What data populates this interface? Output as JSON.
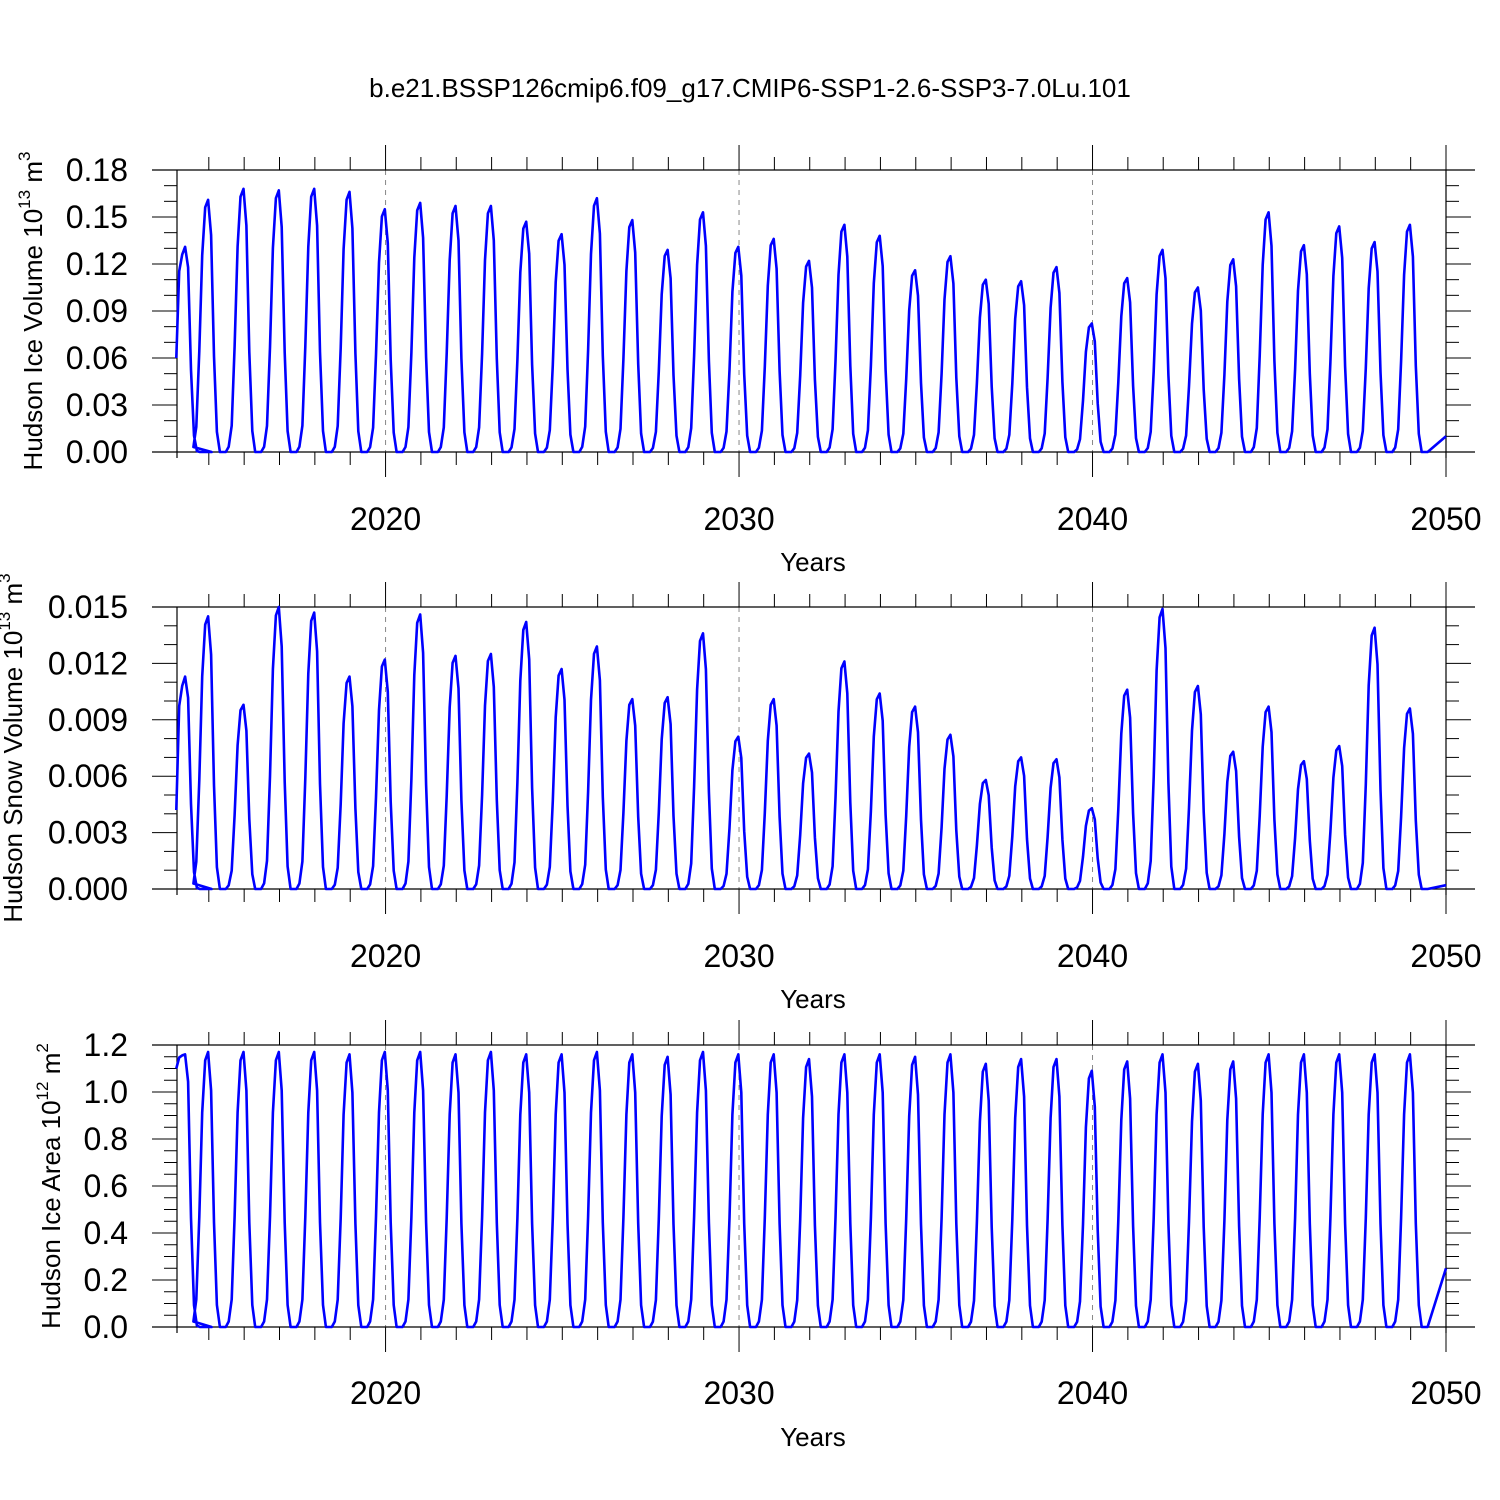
{
  "title": "b.e21.BSSP126cmip6.f09_g17.CMIP6-SSP1-2.6-SSP3-7.0Lu.101",
  "colors": {
    "series": "#0000ff",
    "axes": "#000000",
    "grid": "#888888"
  },
  "chart_data": [
    {
      "type": "line",
      "name": "ice-volume",
      "ylabel": {
        "text": "Hudson Ice Volume 10",
        "exp": "13",
        "unit": " m",
        "unit_exp": "3"
      },
      "xlabel": "Years",
      "xlim": [
        2014.1,
        2050.0
      ],
      "ylim": [
        0,
        0.18
      ],
      "yticks": [
        0.0,
        0.03,
        0.06,
        0.09,
        0.12,
        0.15,
        0.18
      ],
      "ytick_labels": [
        "0.00",
        "0.03",
        "0.06",
        "0.09",
        "0.12",
        "0.15",
        "0.18"
      ],
      "yminor": 0.01,
      "xticks": [
        2020,
        2030,
        2040,
        2050
      ],
      "xtick_labels": [
        "2020",
        "2030",
        "2040",
        "2050"
      ],
      "grid_years": [
        2020,
        2030,
        2040
      ],
      "start_year": 2014.08,
      "start_value": 0.06,
      "end_value": 0.01,
      "base_value": 0.0,
      "annual_peaks": [
        0.131,
        0.161,
        0.168,
        0.167,
        0.168,
        0.166,
        0.155,
        0.159,
        0.157,
        0.157,
        0.147,
        0.139,
        0.162,
        0.148,
        0.129,
        0.153,
        0.131,
        0.136,
        0.122,
        0.145,
        0.138,
        0.116,
        0.125,
        0.11,
        0.109,
        0.118,
        0.082,
        0.111,
        0.129,
        0.105,
        0.123,
        0.153,
        0.132,
        0.144,
        0.134,
        0.145
      ]
    },
    {
      "type": "line",
      "name": "snow-volume",
      "ylabel": {
        "text": "Hudson Snow Volume 10",
        "exp": "13",
        "unit": " m",
        "unit_exp": "3"
      },
      "xlabel": "Years",
      "xlim": [
        2014.1,
        2050.0
      ],
      "ylim": [
        0,
        0.015
      ],
      "yticks": [
        0.0,
        0.003,
        0.006,
        0.009,
        0.012,
        0.015
      ],
      "ytick_labels": [
        "0.000",
        "0.003",
        "0.006",
        "0.009",
        "0.012",
        "0.015"
      ],
      "yminor": 0.001,
      "xticks": [
        2020,
        2030,
        2040,
        2050
      ],
      "xtick_labels": [
        "2020",
        "2030",
        "2040",
        "2050"
      ],
      "grid_years": [
        2020,
        2030,
        2040
      ],
      "start_year": 2014.08,
      "start_value": 0.0042,
      "end_value": 0.0002,
      "base_value": 0.0,
      "annual_peaks": [
        0.0113,
        0.0145,
        0.0098,
        0.015,
        0.0147,
        0.0113,
        0.0122,
        0.0146,
        0.0124,
        0.0125,
        0.0142,
        0.0117,
        0.0129,
        0.0101,
        0.0102,
        0.0136,
        0.0081,
        0.0101,
        0.0072,
        0.0121,
        0.0104,
        0.0097,
        0.0082,
        0.0058,
        0.007,
        0.0069,
        0.0043,
        0.0106,
        0.0149,
        0.0108,
        0.0073,
        0.0097,
        0.0068,
        0.0076,
        0.0139,
        0.0096
      ]
    },
    {
      "type": "line",
      "name": "ice-area",
      "ylabel": {
        "text": "Hudson Ice Area 10",
        "exp": "12",
        "unit": " m",
        "unit_exp": "2"
      },
      "xlabel": "Years",
      "xlim": [
        2014.1,
        2050.0
      ],
      "ylim": [
        0,
        1.2
      ],
      "yticks": [
        0.0,
        0.2,
        0.4,
        0.6,
        0.8,
        1.0,
        1.2
      ],
      "ytick_labels": [
        "0.0",
        "0.2",
        "0.4",
        "0.6",
        "0.8",
        "1.0",
        "1.2"
      ],
      "yminor": 0.05,
      "xticks": [
        2020,
        2030,
        2040,
        2050
      ],
      "xtick_labels": [
        "2020",
        "2030",
        "2040",
        "2050"
      ],
      "grid_years": [
        2020,
        2030,
        2040
      ],
      "start_year": 2014.08,
      "start_value": 1.1,
      "end_value": 0.25,
      "base_value": 0.0,
      "annual_peaks": [
        1.16,
        1.17,
        1.17,
        1.17,
        1.17,
        1.16,
        1.17,
        1.17,
        1.16,
        1.17,
        1.16,
        1.16,
        1.17,
        1.16,
        1.15,
        1.17,
        1.16,
        1.16,
        1.14,
        1.16,
        1.16,
        1.15,
        1.16,
        1.12,
        1.14,
        1.14,
        1.09,
        1.13,
        1.16,
        1.12,
        1.13,
        1.16,
        1.16,
        1.16,
        1.16,
        1.16
      ]
    }
  ]
}
